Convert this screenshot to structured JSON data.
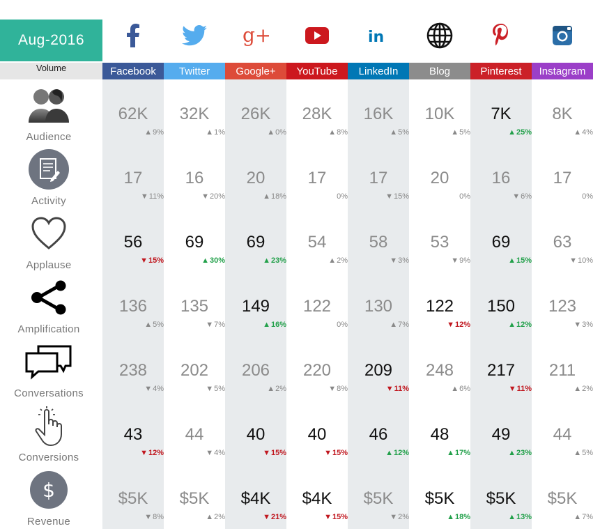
{
  "header": {
    "date": "Aug-2016",
    "volume_label": "Volume"
  },
  "colors": {
    "date_bg": "#30b39a",
    "facebook": "#3b5998",
    "twitter": "#55acee",
    "googleplus": "#dd4b39",
    "youtube": "#cc181e",
    "linkedin": "#0077b5",
    "blog": "#8c8c8c",
    "pinterest": "#cb2027",
    "instagram": "#9b3fc8",
    "up_green": "#22a04a",
    "down_red": "#c0171f"
  },
  "channels": [
    {
      "key": "facebook",
      "label": "Facebook",
      "icon": "facebook-icon"
    },
    {
      "key": "twitter",
      "label": "Twitter",
      "icon": "twitter-icon"
    },
    {
      "key": "googleplus",
      "label": "Google+",
      "icon": "google-plus-icon"
    },
    {
      "key": "youtube",
      "label": "YouTube",
      "icon": "youtube-icon"
    },
    {
      "key": "linkedin",
      "label": "LinkedIn",
      "icon": "linkedin-icon"
    },
    {
      "key": "blog",
      "label": "Blog",
      "icon": "globe-icon"
    },
    {
      "key": "pinterest",
      "label": "Pinterest",
      "icon": "pinterest-icon"
    },
    {
      "key": "instagram",
      "label": "Instagram",
      "icon": "instagram-icon"
    }
  ],
  "metrics": [
    {
      "label": "Audience",
      "icon": "audience-icon",
      "cells": [
        {
          "v": "62K",
          "c": "9%",
          "d": "up",
          "s": "neutral"
        },
        {
          "v": "32K",
          "c": "1%",
          "d": "up",
          "s": "neutral"
        },
        {
          "v": "26K",
          "c": "0%",
          "d": "up",
          "s": "neutral"
        },
        {
          "v": "28K",
          "c": "8%",
          "d": "up",
          "s": "neutral"
        },
        {
          "v": "16K",
          "c": "5%",
          "d": "up",
          "s": "neutral"
        },
        {
          "v": "10K",
          "c": "5%",
          "d": "up",
          "s": "neutral"
        },
        {
          "v": "7K",
          "c": "25%",
          "d": "up",
          "s": "good"
        },
        {
          "v": "8K",
          "c": "4%",
          "d": "up",
          "s": "neutral"
        }
      ]
    },
    {
      "label": "Activity",
      "icon": "activity-icon",
      "cells": [
        {
          "v": "17",
          "c": "11%",
          "d": "down",
          "s": "neutral"
        },
        {
          "v": "16",
          "c": "20%",
          "d": "down",
          "s": "neutral"
        },
        {
          "v": "20",
          "c": "18%",
          "d": "up",
          "s": "neutral"
        },
        {
          "v": "17",
          "c": "0%",
          "d": "none",
          "s": "neutral"
        },
        {
          "v": "17",
          "c": "15%",
          "d": "down",
          "s": "neutral"
        },
        {
          "v": "20",
          "c": "0%",
          "d": "none",
          "s": "neutral"
        },
        {
          "v": "16",
          "c": "6%",
          "d": "down",
          "s": "neutral"
        },
        {
          "v": "17",
          "c": "0%",
          "d": "none",
          "s": "neutral"
        }
      ]
    },
    {
      "label": "Applause",
      "icon": "heart-icon",
      "cells": [
        {
          "v": "56",
          "c": "15%",
          "d": "down",
          "s": "bad"
        },
        {
          "v": "69",
          "c": "30%",
          "d": "up",
          "s": "good"
        },
        {
          "v": "69",
          "c": "23%",
          "d": "up",
          "s": "good"
        },
        {
          "v": "54",
          "c": "2%",
          "d": "up",
          "s": "neutral"
        },
        {
          "v": "58",
          "c": "3%",
          "d": "down",
          "s": "neutral"
        },
        {
          "v": "53",
          "c": "9%",
          "d": "down",
          "s": "neutral"
        },
        {
          "v": "69",
          "c": "15%",
          "d": "up",
          "s": "good"
        },
        {
          "v": "63",
          "c": "10%",
          "d": "down",
          "s": "neutral"
        }
      ]
    },
    {
      "label": "Amplification",
      "icon": "share-icon",
      "cells": [
        {
          "v": "136",
          "c": "5%",
          "d": "up",
          "s": "neutral"
        },
        {
          "v": "135",
          "c": "7%",
          "d": "down",
          "s": "neutral"
        },
        {
          "v": "149",
          "c": "16%",
          "d": "up",
          "s": "good"
        },
        {
          "v": "122",
          "c": "0%",
          "d": "none",
          "s": "neutral"
        },
        {
          "v": "130",
          "c": "7%",
          "d": "up",
          "s": "neutral"
        },
        {
          "v": "122",
          "c": "12%",
          "d": "down",
          "s": "bad"
        },
        {
          "v": "150",
          "c": "12%",
          "d": "up",
          "s": "good"
        },
        {
          "v": "123",
          "c": "3%",
          "d": "down",
          "s": "neutral"
        }
      ]
    },
    {
      "label": "Conversations",
      "icon": "chat-bubbles-icon",
      "cells": [
        {
          "v": "238",
          "c": "4%",
          "d": "down",
          "s": "neutral"
        },
        {
          "v": "202",
          "c": "5%",
          "d": "down",
          "s": "neutral"
        },
        {
          "v": "206",
          "c": "2%",
          "d": "up",
          "s": "neutral"
        },
        {
          "v": "220",
          "c": "8%",
          "d": "down",
          "s": "neutral"
        },
        {
          "v": "209",
          "c": "11%",
          "d": "down",
          "s": "bad"
        },
        {
          "v": "248",
          "c": "6%",
          "d": "up",
          "s": "neutral"
        },
        {
          "v": "217",
          "c": "11%",
          "d": "down",
          "s": "bad"
        },
        {
          "v": "211",
          "c": "2%",
          "d": "up",
          "s": "neutral"
        }
      ]
    },
    {
      "label": "Conversions",
      "icon": "pointer-hand-icon",
      "cells": [
        {
          "v": "43",
          "c": "12%",
          "d": "down",
          "s": "bad"
        },
        {
          "v": "44",
          "c": "4%",
          "d": "down",
          "s": "neutral"
        },
        {
          "v": "40",
          "c": "15%",
          "d": "down",
          "s": "bad"
        },
        {
          "v": "40",
          "c": "15%",
          "d": "down",
          "s": "bad"
        },
        {
          "v": "46",
          "c": "12%",
          "d": "up",
          "s": "good"
        },
        {
          "v": "48",
          "c": "17%",
          "d": "up",
          "s": "good"
        },
        {
          "v": "49",
          "c": "23%",
          "d": "up",
          "s": "good"
        },
        {
          "v": "44",
          "c": "5%",
          "d": "up",
          "s": "neutral"
        }
      ]
    },
    {
      "label": "Revenue",
      "icon": "dollar-icon",
      "cells": [
        {
          "v": "$5K",
          "c": "8%",
          "d": "down",
          "s": "neutral"
        },
        {
          "v": "$5K",
          "c": "2%",
          "d": "up",
          "s": "neutral"
        },
        {
          "v": "$4K",
          "c": "21%",
          "d": "down",
          "s": "bad"
        },
        {
          "v": "$4K",
          "c": "15%",
          "d": "down",
          "s": "bad"
        },
        {
          "v": "$5K",
          "c": "2%",
          "d": "down",
          "s": "neutral"
        },
        {
          "v": "$5K",
          "c": "18%",
          "d": "up",
          "s": "good"
        },
        {
          "v": "$5K",
          "c": "13%",
          "d": "up",
          "s": "good"
        },
        {
          "v": "$5K",
          "c": "7%",
          "d": "up",
          "s": "neutral"
        }
      ]
    }
  ]
}
